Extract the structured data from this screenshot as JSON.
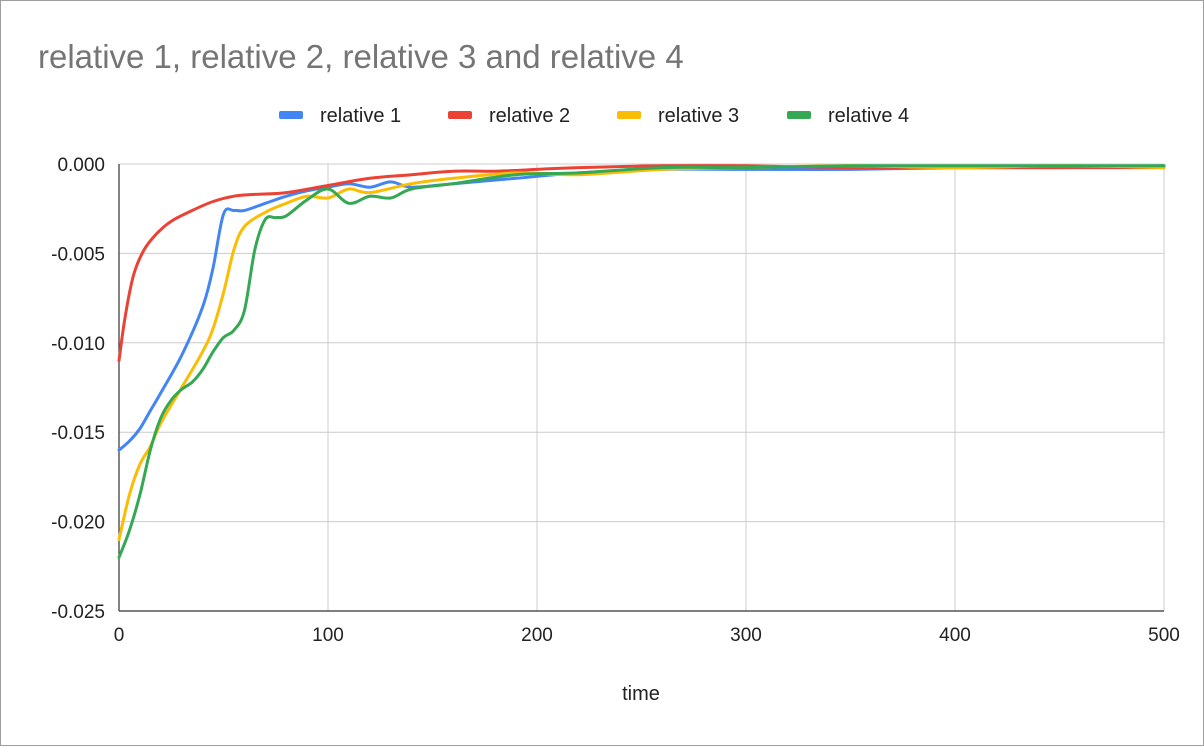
{
  "chart_data": {
    "type": "line",
    "title": "relative 1, relative 2, relative 3 and relative 4",
    "xlabel": "time",
    "ylabel": "",
    "xlim": [
      0,
      500
    ],
    "ylim": [
      -0.025,
      0.0
    ],
    "xticks": [
      "0",
      "100",
      "200",
      "300",
      "400",
      "500"
    ],
    "yticks": [
      "0.000",
      "-0.005",
      "-0.010",
      "-0.015",
      "-0.020",
      "-0.025"
    ],
    "grid": true,
    "legend_position": "top-center",
    "series": [
      {
        "name": "relative 1",
        "color": "#4285f4",
        "x": [
          0,
          5,
          10,
          15,
          20,
          30,
          40,
          45,
          50,
          55,
          60,
          70,
          80,
          90,
          100,
          110,
          120,
          130,
          140,
          160,
          190,
          220,
          260,
          300,
          350,
          400,
          450,
          500
        ],
        "y": [
          -0.016,
          -0.0155,
          -0.0148,
          -0.0138,
          -0.0128,
          -0.0107,
          -0.008,
          -0.0058,
          -0.0028,
          -0.0026,
          -0.0026,
          -0.0022,
          -0.0018,
          -0.0015,
          -0.0013,
          -0.0011,
          -0.0013,
          -0.001,
          -0.0013,
          -0.0011,
          -0.0008,
          -0.0005,
          -0.0003,
          -0.0003,
          -0.0003,
          -0.0002,
          -0.0002,
          -0.0001
        ]
      },
      {
        "name": "relative 2",
        "color": "#ea4335",
        "x": [
          0,
          3,
          7,
          12,
          18,
          25,
          35,
          45,
          55,
          65,
          80,
          100,
          120,
          140,
          160,
          180,
          200,
          220,
          260,
          300,
          350,
          400,
          450,
          500
        ],
        "y": [
          -0.011,
          -0.0085,
          -0.0062,
          -0.0048,
          -0.0039,
          -0.0032,
          -0.0026,
          -0.0021,
          -0.0018,
          -0.0017,
          -0.0016,
          -0.0012,
          -0.0008,
          -0.0006,
          -0.0004,
          -0.0004,
          -0.0003,
          -0.0002,
          -0.0001,
          -0.0001,
          -0.0002,
          -0.0002,
          -0.0002,
          -0.0002
        ]
      },
      {
        "name": "relative 3",
        "color": "#fbbc04",
        "x": [
          0,
          5,
          10,
          15,
          20,
          30,
          40,
          45,
          50,
          55,
          60,
          70,
          80,
          90,
          100,
          110,
          120,
          140,
          160,
          190,
          220,
          260,
          300,
          350,
          400,
          450,
          500
        ],
        "y": [
          -0.021,
          -0.0185,
          -0.0168,
          -0.0158,
          -0.0145,
          -0.0125,
          -0.0105,
          -0.0092,
          -0.0072,
          -0.0048,
          -0.0035,
          -0.0027,
          -0.0022,
          -0.0018,
          -0.0019,
          -0.0014,
          -0.0016,
          -0.0011,
          -0.0008,
          -0.0005,
          -0.0006,
          -0.0003,
          -0.0002,
          -0.0001,
          -0.0002,
          -0.0001,
          -0.0002
        ]
      },
      {
        "name": "relative 4",
        "color": "#34a853",
        "x": [
          0,
          5,
          10,
          15,
          20,
          25,
          30,
          35,
          40,
          45,
          50,
          55,
          60,
          65,
          70,
          75,
          80,
          90,
          100,
          110,
          120,
          130,
          140,
          160,
          190,
          220,
          260,
          300,
          350,
          400,
          450,
          500
        ],
        "y": [
          -0.022,
          -0.0205,
          -0.0185,
          -0.016,
          -0.0142,
          -0.0132,
          -0.0126,
          -0.0122,
          -0.0115,
          -0.0105,
          -0.0097,
          -0.0093,
          -0.0082,
          -0.0048,
          -0.0031,
          -0.003,
          -0.0029,
          -0.002,
          -0.0014,
          -0.0022,
          -0.0018,
          -0.0019,
          -0.0014,
          -0.0011,
          -0.0006,
          -0.0005,
          -0.0002,
          -0.0002,
          -0.0001,
          -0.0001,
          -0.0001,
          -0.0001
        ]
      }
    ]
  }
}
